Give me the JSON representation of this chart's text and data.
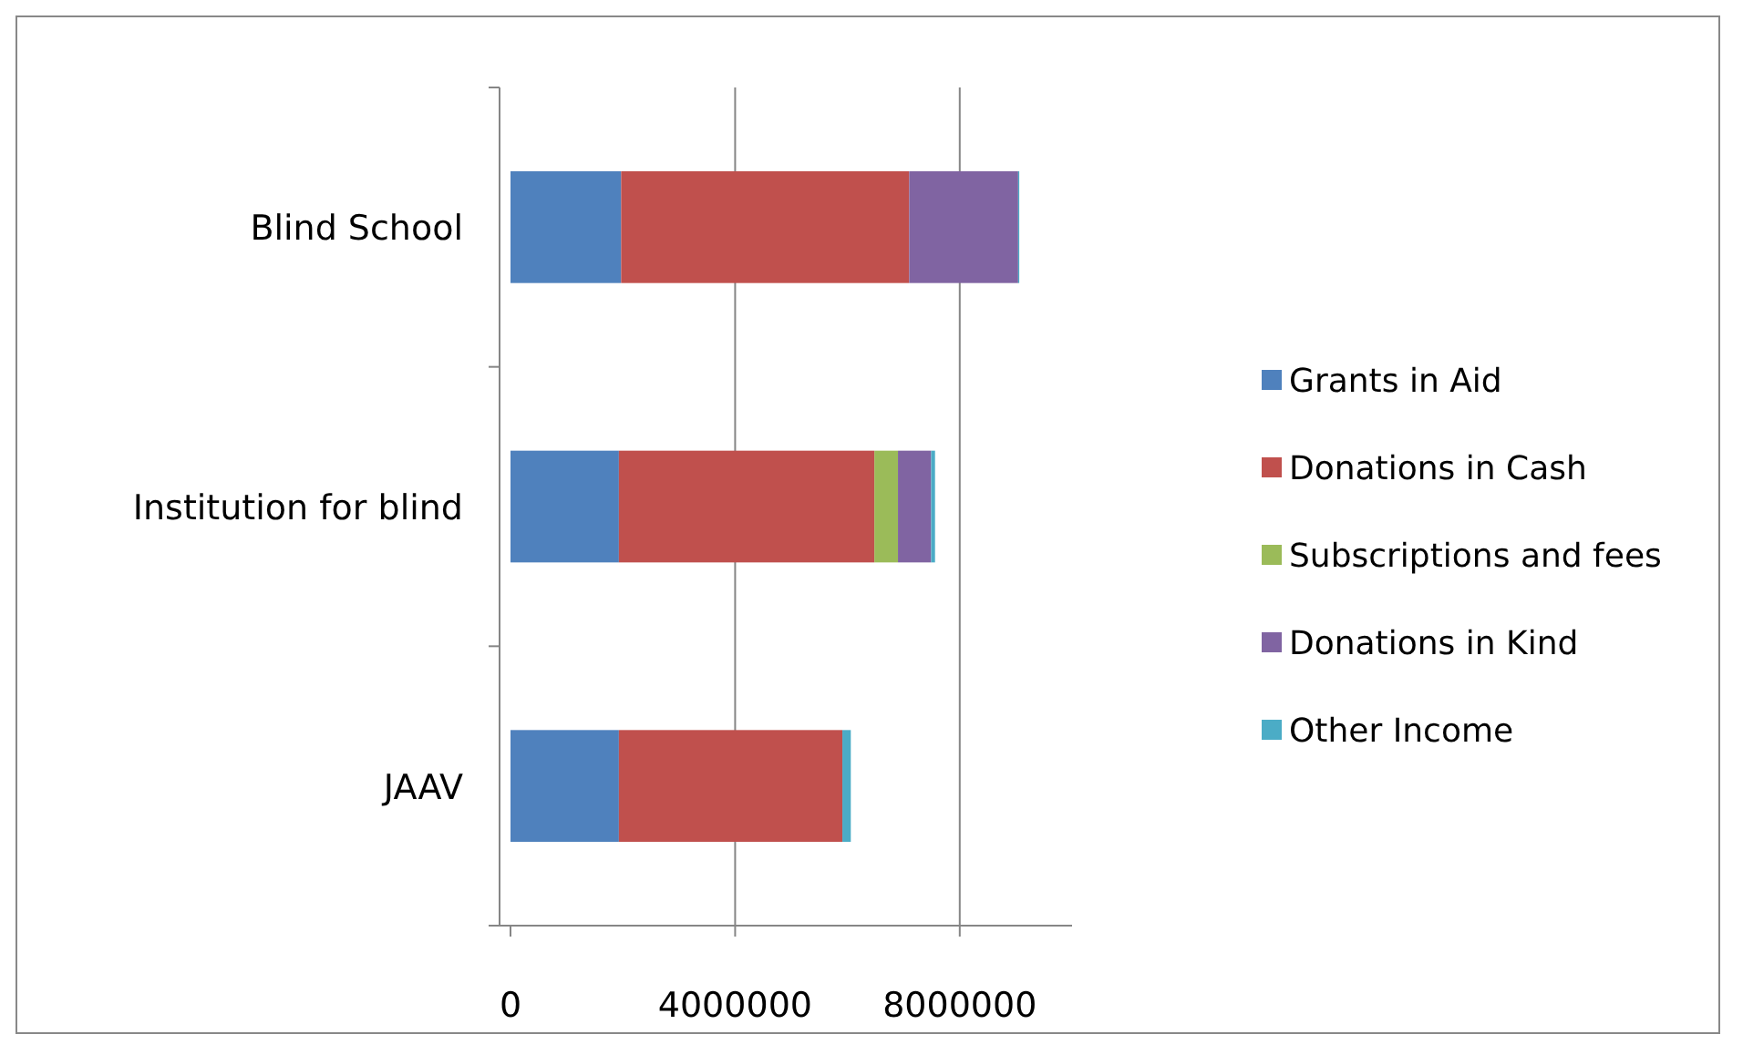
{
  "chart_data": {
    "type": "bar",
    "orientation": "horizontal",
    "stacked": true,
    "categories": [
      "Blind School",
      "Institution for blind",
      "JAAV"
    ],
    "series": [
      {
        "name": "Grants in Aid",
        "color": "#4f81bd",
        "values": [
          1970000,
          1930000,
          1930000
        ]
      },
      {
        "name": "Donations in Cash",
        "color": "#c0504d",
        "values": [
          5130000,
          4550000,
          3980000
        ]
      },
      {
        "name": "Subscriptions and fees",
        "color": "#9bbb59",
        "values": [
          0,
          420000,
          0
        ]
      },
      {
        "name": "Donations in Kind",
        "color": "#8064a2",
        "values": [
          1940000,
          590000,
          0
        ]
      },
      {
        "name": "Other Income",
        "color": "#4bacc6",
        "values": [
          20000,
          70000,
          150000
        ]
      }
    ],
    "xlim": [
      0,
      10000000
    ],
    "xticks": [
      0,
      4000000,
      8000000
    ],
    "grid": "x",
    "legend": "right"
  }
}
